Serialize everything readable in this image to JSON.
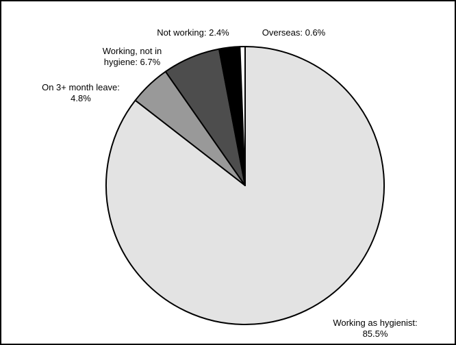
{
  "chart_data": {
    "type": "pie",
    "title": "",
    "slices": [
      {
        "label_lines": [
          "Working as hygienist:",
          "85.5%"
        ],
        "value": 85.5,
        "color": "#e3e3e3"
      },
      {
        "label_lines": [
          "On 3+ month leave:",
          "4.8%"
        ],
        "value": 4.8,
        "color": "#999999"
      },
      {
        "label_lines": [
          "Working, not in",
          "hygiene: 6.7%"
        ],
        "value": 6.7,
        "color": "#4d4d4d"
      },
      {
        "label_lines": [
          "Not working: 2.4%"
        ],
        "value": 2.4,
        "color": "#000000"
      },
      {
        "label_lines": [
          "Overseas: 0.6%"
        ],
        "value": 0.6,
        "color": "#ffffff"
      }
    ],
    "start": "12 o'clock",
    "direction": "clockwise",
    "stroke_color": "#000000",
    "legend": "none"
  }
}
